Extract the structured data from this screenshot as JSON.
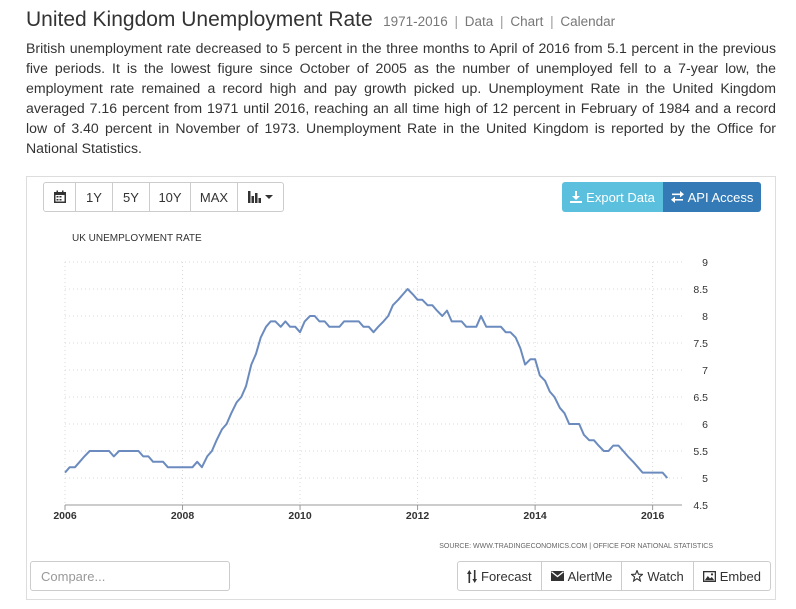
{
  "header": {
    "title": "United Kingdom Unemployment Rate",
    "period": "1971-2016",
    "links": [
      "Data",
      "Chart",
      "Calendar"
    ]
  },
  "description": "British unemployment rate decreased to 5 percent in the three months to April of 2016 from 5.1 percent in the previous five periods. It is the lowest figure since October of 2005 as the number of unemployed fell to a 7-year low, the employment rate remained a record high and pay growth picked up. Unemployment Rate in the United Kingdom averaged 7.16 percent from 1971 until 2016, reaching an all time high of 12 percent in February of 1984 and a record low of 3.40 percent in November of 1973. Unemployment Rate in the United Kingdom is reported by the Office for National Statistics.",
  "toolbar": {
    "calendar_icon": "calendar-icon",
    "ranges": [
      "1Y",
      "5Y",
      "10Y",
      "MAX"
    ],
    "chart_type_icon": "bar-chart-icon",
    "export_label": "Export Data",
    "export_icon": "download-icon",
    "api_label": "API Access",
    "api_icon": "swap-arrows-icon"
  },
  "colors": {
    "line": "#6b8bbf",
    "export_bg": "#5bc0de",
    "api_bg": "#337ab7",
    "grid": "#d8d8d8"
  },
  "chart_data": {
    "type": "line",
    "title": "UK UNEMPLOYMENT RATE",
    "source": "SOURCE: WWW.TRADINGECONOMICS.COM | OFFICE FOR NATIONAL STATISTICS",
    "xlabel": "",
    "ylabel": "",
    "xlim": [
      2006.0,
      2016.5
    ],
    "ylim": [
      4.5,
      9
    ],
    "x_ticks": [
      2006,
      2008,
      2010,
      2012,
      2014,
      2016
    ],
    "y_ticks": [
      4.5,
      5,
      5.5,
      6,
      6.5,
      7,
      7.5,
      8,
      8.5,
      9
    ],
    "y_axis_side": "right",
    "grid": "dotted",
    "legend": "none",
    "series": [
      {
        "x": [
          2006.0,
          2006.08,
          2006.17,
          2006.25,
          2006.33,
          2006.42,
          2006.5,
          2006.58,
          2006.67,
          2006.75,
          2006.83,
          2006.92,
          2007.0,
          2007.08,
          2007.17,
          2007.25,
          2007.33,
          2007.42,
          2007.5,
          2007.58,
          2007.67,
          2007.75,
          2007.83,
          2007.92,
          2008.0,
          2008.08,
          2008.17,
          2008.25,
          2008.33,
          2008.42,
          2008.5,
          2008.58,
          2008.67,
          2008.75,
          2008.83,
          2008.92,
          2009.0,
          2009.08,
          2009.17,
          2009.25,
          2009.33,
          2009.42,
          2009.5,
          2009.58,
          2009.67,
          2009.75,
          2009.83,
          2009.92,
          2010.0,
          2010.08,
          2010.17,
          2010.25,
          2010.33,
          2010.42,
          2010.5,
          2010.58,
          2010.67,
          2010.75,
          2010.83,
          2010.92,
          2011.0,
          2011.08,
          2011.17,
          2011.25,
          2011.33,
          2011.42,
          2011.5,
          2011.58,
          2011.67,
          2011.75,
          2011.83,
          2011.92,
          2012.0,
          2012.08,
          2012.17,
          2012.25,
          2012.33,
          2012.42,
          2012.5,
          2012.58,
          2012.67,
          2012.75,
          2012.83,
          2012.92,
          2013.0,
          2013.08,
          2013.17,
          2013.25,
          2013.33,
          2013.42,
          2013.5,
          2013.58,
          2013.67,
          2013.75,
          2013.83,
          2013.92,
          2014.0,
          2014.08,
          2014.17,
          2014.25,
          2014.33,
          2014.42,
          2014.5,
          2014.58,
          2014.67,
          2014.75,
          2014.83,
          2014.92,
          2015.0,
          2015.08,
          2015.17,
          2015.25,
          2015.33,
          2015.42,
          2015.5,
          2015.58,
          2015.67,
          2015.75,
          2015.83,
          2015.92,
          2016.0,
          2016.08,
          2016.17,
          2016.25
        ],
        "values": [
          5.1,
          5.2,
          5.2,
          5.3,
          5.4,
          5.5,
          5.5,
          5.5,
          5.5,
          5.5,
          5.4,
          5.5,
          5.5,
          5.5,
          5.5,
          5.5,
          5.4,
          5.4,
          5.3,
          5.3,
          5.3,
          5.2,
          5.2,
          5.2,
          5.2,
          5.2,
          5.2,
          5.3,
          5.2,
          5.4,
          5.5,
          5.7,
          5.9,
          6.0,
          6.2,
          6.4,
          6.5,
          6.7,
          7.1,
          7.3,
          7.6,
          7.8,
          7.9,
          7.9,
          7.8,
          7.9,
          7.8,
          7.8,
          7.7,
          7.9,
          8.0,
          8.0,
          7.9,
          7.9,
          7.8,
          7.8,
          7.8,
          7.9,
          7.9,
          7.9,
          7.9,
          7.8,
          7.8,
          7.7,
          7.8,
          7.9,
          8.0,
          8.2,
          8.3,
          8.4,
          8.5,
          8.4,
          8.3,
          8.3,
          8.2,
          8.2,
          8.1,
          8.0,
          8.1,
          7.9,
          7.9,
          7.9,
          7.8,
          7.8,
          7.8,
          8.0,
          7.8,
          7.8,
          7.8,
          7.8,
          7.7,
          7.7,
          7.6,
          7.4,
          7.1,
          7.2,
          7.2,
          6.9,
          6.8,
          6.6,
          6.5,
          6.3,
          6.2,
          6.0,
          6.0,
          6.0,
          5.8,
          5.7,
          5.7,
          5.6,
          5.5,
          5.5,
          5.6,
          5.6,
          5.5,
          5.4,
          5.3,
          5.2,
          5.1,
          5.1,
          5.1,
          5.1,
          5.1,
          5.0
        ]
      }
    ]
  },
  "compare": {
    "placeholder": "Compare..."
  },
  "actions": [
    {
      "label": "Forecast",
      "icon": "sort-arrows-icon"
    },
    {
      "label": "AlertMe",
      "icon": "envelope-icon"
    },
    {
      "label": "Watch",
      "icon": "star-icon"
    },
    {
      "label": "Embed",
      "icon": "picture-icon"
    }
  ]
}
